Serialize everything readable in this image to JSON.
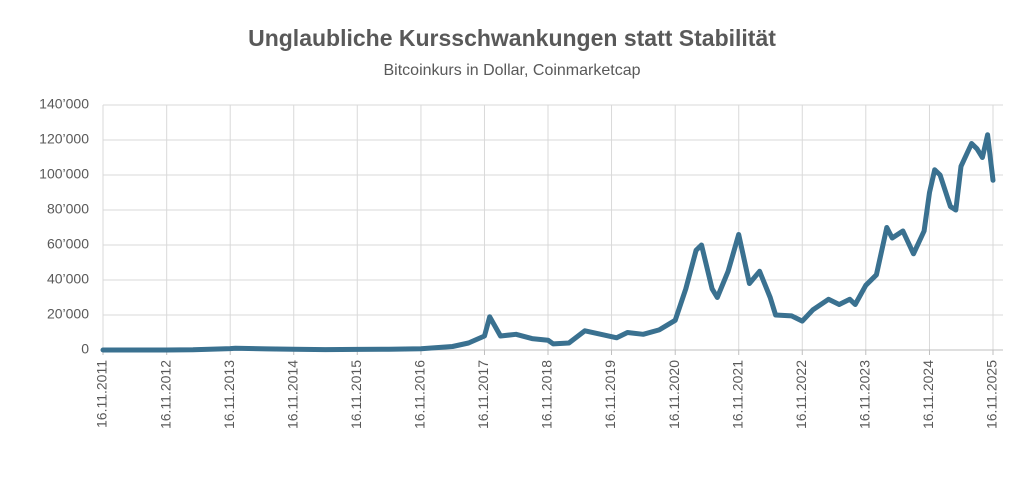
{
  "chart_data": {
    "type": "line",
    "title": "Unglaubliche Kursschwankungen statt Stabilität",
    "subtitle": "Bitcoinkurs in Dollar, Coinmarketcap",
    "x": [
      "16.11.2011",
      "16.05.2012",
      "16.11.2012",
      "16.04.2013",
      "16.11.2013",
      "16.12.2013",
      "16.06.2014",
      "16.11.2014",
      "16.05.2015",
      "16.11.2015",
      "16.05.2016",
      "16.11.2016",
      "16.05.2017",
      "16.08.2017",
      "16.11.2017",
      "16.12.2017",
      "16.02.2018",
      "16.05.2018",
      "16.08.2018",
      "16.11.2018",
      "16.12.2018",
      "16.03.2019",
      "16.06.2019",
      "16.09.2019",
      "16.12.2019",
      "16.02.2020",
      "16.05.2020",
      "16.08.2020",
      "16.11.2020",
      "16.01.2021",
      "16.03.2021",
      "16.04.2021",
      "16.06.2021",
      "16.07.2021",
      "16.09.2021",
      "16.11.2021",
      "16.01.2022",
      "16.03.2022",
      "16.05.2022",
      "16.06.2022",
      "16.09.2022",
      "16.11.2022",
      "16.01.2023",
      "16.04.2023",
      "16.06.2023",
      "16.08.2023",
      "16.09.2023",
      "16.11.2023",
      "16.01.2024",
      "16.03.2024",
      "16.04.2024",
      "16.06.2024",
      "16.08.2024",
      "16.10.2024",
      "16.11.2024",
      "16.12.2024",
      "16.01.2025",
      "16.03.2025",
      "16.04.2025",
      "16.05.2025",
      "16.07.2025",
      "16.08.2025",
      "16.09.2025",
      "16.10.2025",
      "16.11.2025"
    ],
    "series": [
      {
        "name": "Bitcoinkurs",
        "color": "#3a7190",
        "values": [
          3,
          5,
          11,
          130,
          800,
          1000,
          600,
          380,
          240,
          330,
          450,
          740,
          2000,
          4000,
          8000,
          19000,
          8000,
          9000,
          6500,
          5600,
          3500,
          4000,
          11000,
          9000,
          7000,
          10000,
          9000,
          11500,
          17000,
          35000,
          57000,
          60000,
          35000,
          30000,
          45000,
          66000,
          38000,
          45000,
          30000,
          20000,
          19500,
          16500,
          23000,
          29000,
          26000,
          29000,
          26000,
          37000,
          43000,
          70000,
          64000,
          68000,
          55000,
          68000,
          90000,
          103000,
          100000,
          82000,
          80000,
          105000,
          118000,
          115000,
          110000,
          123000,
          97000
        ]
      }
    ],
    "xlim": [
      "16.11.2011",
      "16.11.2025"
    ],
    "xticks": [
      "16.11.2011",
      "16.11.2012",
      "16.11.2013",
      "16.11.2014",
      "16.11.2015",
      "16.11.2016",
      "16.11.2017",
      "16.11.2018",
      "16.11.2019",
      "16.11.2020",
      "16.11.2021",
      "16.11.2022",
      "16.11.2023",
      "16.11.2024",
      "16.11.2025"
    ],
    "ylim": [
      0,
      140000
    ],
    "yticks": [
      0,
      {
        "value": 20000,
        "label": "20’000"
      },
      {
        "value": 40000,
        "label": "40’000"
      },
      {
        "value": 60000,
        "label": "60’000"
      },
      {
        "value": 80000,
        "label": "80’000"
      },
      {
        "value": 100000,
        "label": "100’000"
      },
      {
        "value": 120000,
        "label": "120’000"
      },
      {
        "value": 140000,
        "label": "140’000"
      }
    ],
    "grid": true
  }
}
